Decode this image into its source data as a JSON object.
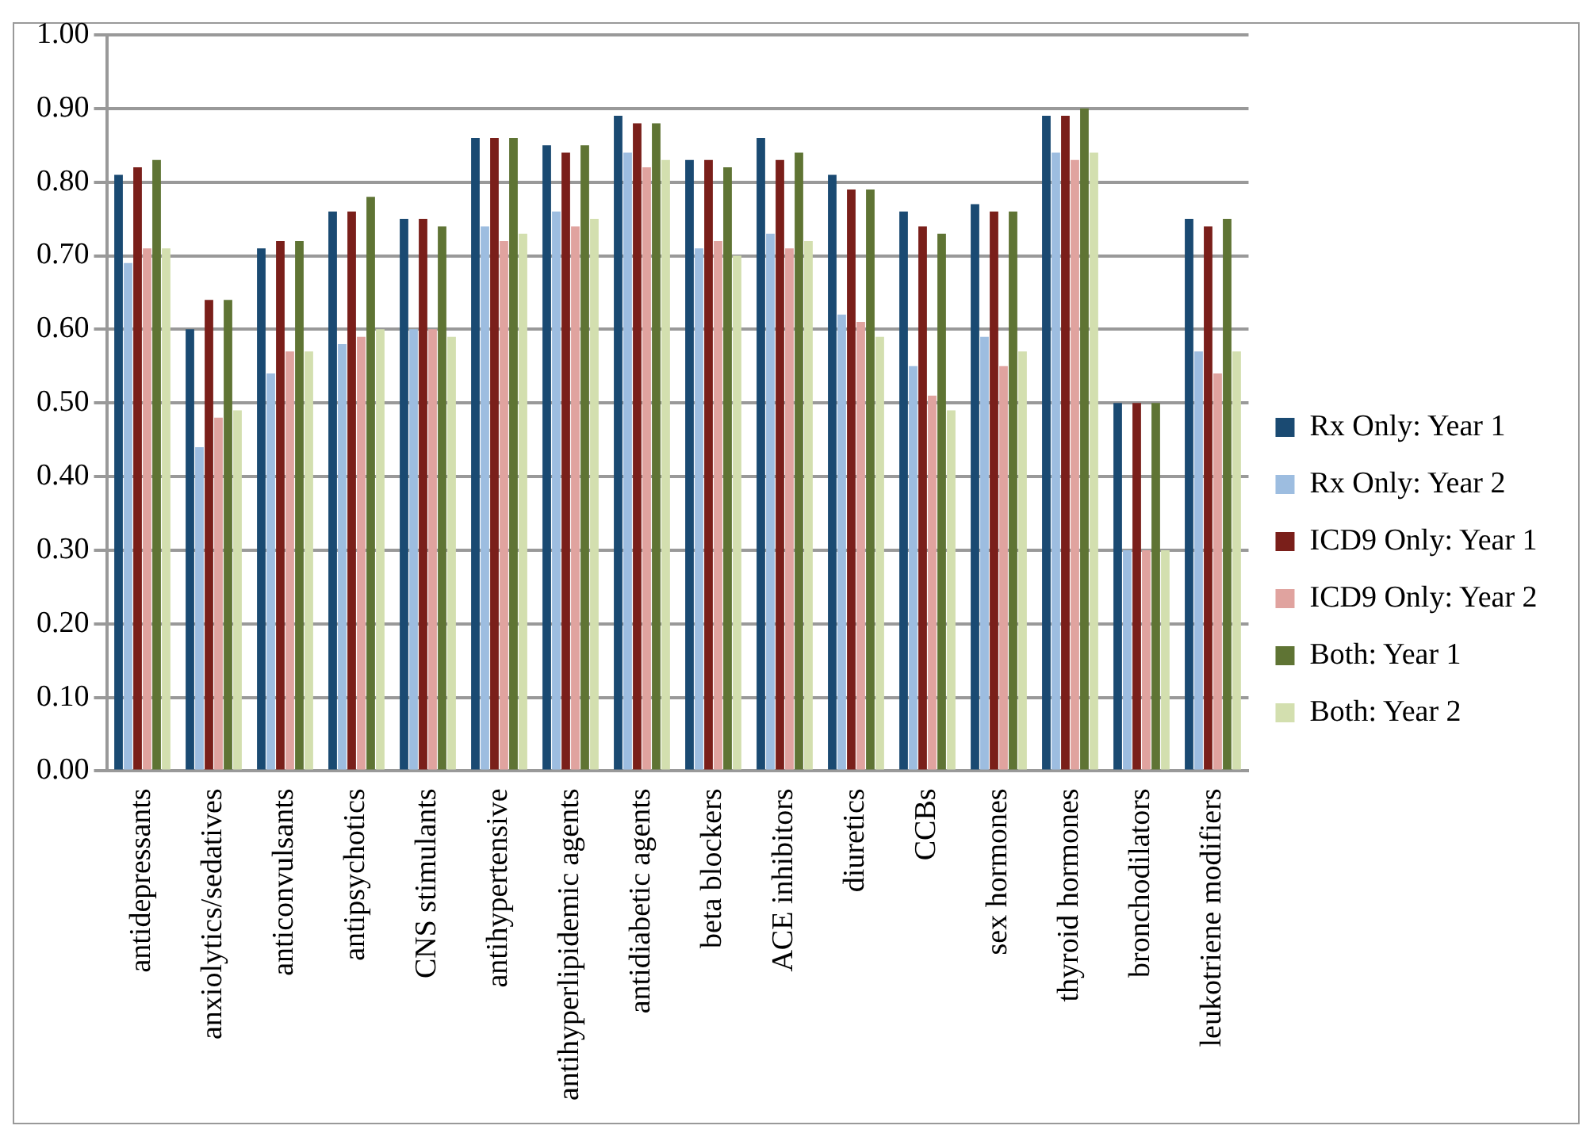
{
  "chart_data": {
    "type": "bar",
    "categories": [
      "antidepressants",
      "anxiolytics/sedatives",
      "anticonvulsants",
      "antipsychotics",
      "CNS stimulants",
      "antihypertensive",
      "antihyperlipidemic agents",
      "antidiabetic agents",
      "beta blockers",
      "ACE inhibitors",
      "diuretics",
      "CCBs",
      "sex hormones",
      "thyroid hormones",
      "bronchodilators",
      "leukotriene modifiers"
    ],
    "series": [
      {
        "name": "Rx Only: Year 1",
        "color": "#1a4a72",
        "values": [
          0.81,
          0.6,
          0.71,
          0.76,
          0.75,
          0.86,
          0.85,
          0.89,
          0.83,
          0.86,
          0.81,
          0.76,
          0.77,
          0.89,
          0.5,
          0.75
        ]
      },
      {
        "name": "Rx Only: Year 2",
        "color": "#9dbde0",
        "values": [
          0.69,
          0.44,
          0.54,
          0.58,
          0.6,
          0.74,
          0.76,
          0.84,
          0.71,
          0.73,
          0.62,
          0.55,
          0.59,
          0.84,
          0.3,
          0.57
        ]
      },
      {
        "name": "ICD9 Only: Year 1",
        "color": "#7a1f1a",
        "values": [
          0.82,
          0.64,
          0.72,
          0.76,
          0.75,
          0.86,
          0.84,
          0.88,
          0.83,
          0.83,
          0.79,
          0.74,
          0.76,
          0.89,
          0.5,
          0.74
        ]
      },
      {
        "name": "ICD9 Only: Year 2",
        "color": "#e0a39f",
        "values": [
          0.71,
          0.48,
          0.57,
          0.59,
          0.6,
          0.72,
          0.74,
          0.82,
          0.72,
          0.71,
          0.61,
          0.51,
          0.55,
          0.83,
          0.3,
          0.54
        ]
      },
      {
        "name": "Both: Year 1",
        "color": "#5f7434",
        "values": [
          0.83,
          0.64,
          0.72,
          0.78,
          0.74,
          0.86,
          0.85,
          0.88,
          0.82,
          0.84,
          0.79,
          0.73,
          0.76,
          0.9,
          0.5,
          0.75
        ]
      },
      {
        "name": "Both: Year 2",
        "color": "#d3dfaf",
        "values": [
          0.71,
          0.49,
          0.57,
          0.6,
          0.59,
          0.73,
          0.75,
          0.83,
          0.7,
          0.72,
          0.59,
          0.49,
          0.57,
          0.84,
          0.3,
          0.57
        ]
      }
    ],
    "ylim": [
      0,
      1
    ],
    "yticks": [
      {
        "value": 0,
        "label": "0.00"
      },
      {
        "value": 0.1,
        "label": "0.10"
      },
      {
        "value": 0.2,
        "label": "0.20"
      },
      {
        "value": 0.3,
        "label": "0.30"
      },
      {
        "value": 0.4,
        "label": "0.40"
      },
      {
        "value": 0.5,
        "label": "0.50"
      },
      {
        "value": 0.6,
        "label": "0.60"
      },
      {
        "value": 0.7,
        "label": "0.70"
      },
      {
        "value": 0.8,
        "label": "0.80"
      },
      {
        "value": 0.9,
        "label": "0.90"
      },
      {
        "value": 1,
        "label": "1.00"
      }
    ],
    "grid": "y",
    "legend": "right"
  }
}
